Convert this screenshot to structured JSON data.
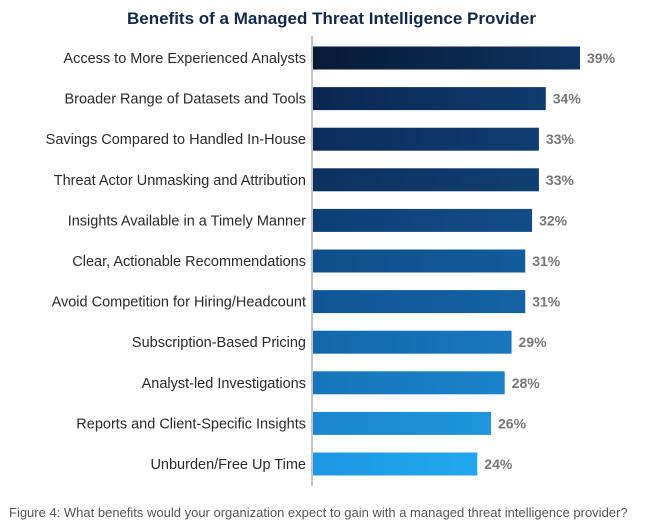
{
  "chart_data": {
    "type": "bar",
    "orientation": "horizontal",
    "title": "Benefits of a Managed Threat Intelligence Provider",
    "categories": [
      "Access to More Experienced Analysts",
      "Broader Range of Datasets and Tools",
      "Savings Compared to Handled In-House",
      "Threat Actor Unmasking and Attribution",
      "Insights Available in a Timely Manner",
      "Clear, Actionable Recommendations",
      "Avoid Competition for Hiring/Headcount",
      "Subscription-Based Pricing",
      "Analyst-led Investigations",
      "Reports and Client-Specific Insights",
      "Unburden/Free Up Time"
    ],
    "values": [
      39,
      34,
      33,
      33,
      32,
      31,
      31,
      29,
      28,
      26,
      24
    ],
    "value_labels": [
      "39%",
      "34%",
      "33%",
      "33%",
      "32%",
      "31%",
      "31%",
      "29%",
      "28%",
      "26%",
      "24%"
    ],
    "unit": "%",
    "xlim": [
      0,
      39
    ],
    "grid": false,
    "legend": "none",
    "colors": {
      "bar_gradient_start": [
        "#061a36",
        "#0a2750",
        "#0b2d5c",
        "#0c315f",
        "#0d3f74",
        "#0f4e8a",
        "#105696",
        "#1468ab",
        "#1675ba",
        "#1a86cf",
        "#1c98e3"
      ],
      "bar_gradient_end": [
        "#0e3462",
        "#0f3b6e",
        "#0f3d70",
        "#0f3f72",
        "#124d87",
        "#135b9b",
        "#1462a5",
        "#1977bd",
        "#1b82c9",
        "#1f95dc",
        "#22a7ee"
      ],
      "title": "#14284b",
      "label": "#2a2a2a",
      "value_label": "#777777",
      "axis_line": "#888888"
    }
  },
  "caption": "Figure 4: What benefits would your organization expect to gain with a managed threat intelligence provider?"
}
